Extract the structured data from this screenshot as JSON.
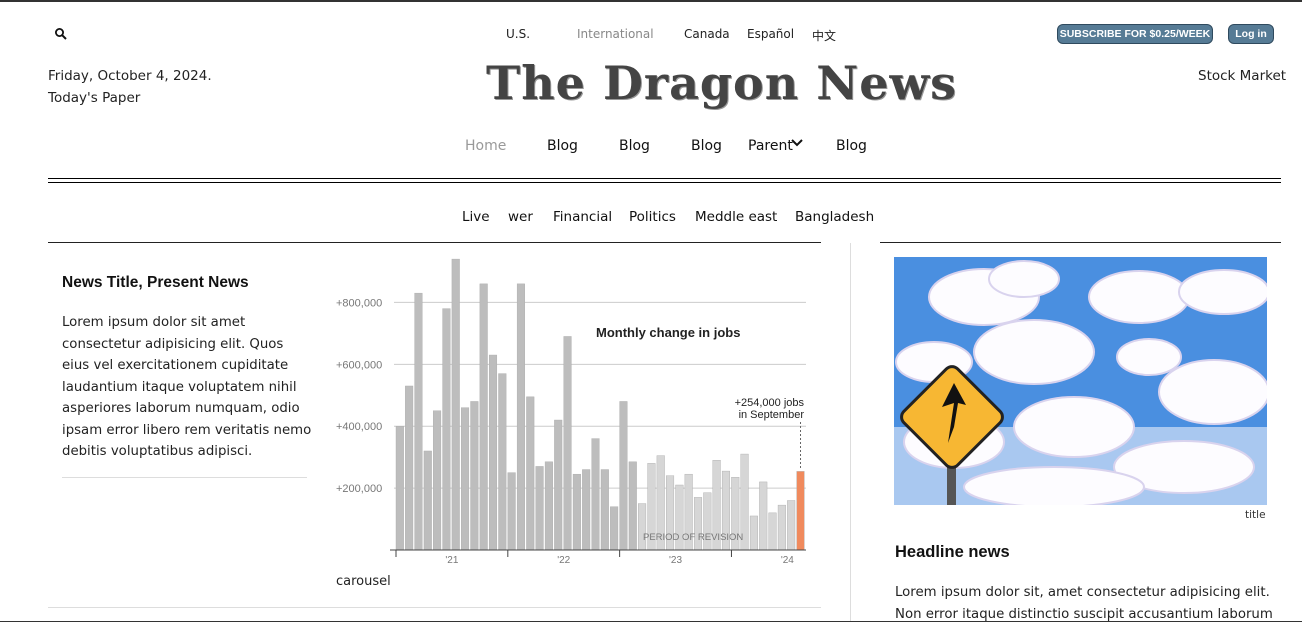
{
  "top_nav": [
    "U.S.",
    "International",
    "Canada",
    "Español",
    "中文"
  ],
  "subscribe_label": "SUBSCRIBE FOR $0.25/WEEK",
  "login_label": "Log in",
  "date": "Friday, October 4, 2024.",
  "todays_paper": "Today's Paper",
  "logo": "The Dragon News",
  "stock_market": "Stock Market",
  "main_nav": [
    "Home",
    "Blog",
    "Blog",
    "Blog",
    "Parent",
    "Blog"
  ],
  "section_nav": [
    "Live",
    "wer",
    "Financial",
    "Politics",
    "Meddle east",
    "Bangladesh"
  ],
  "card": {
    "title": "News Title, Present News",
    "body": "Lorem ipsum dolor sit amet consectetur adipisicing elit. Quos eius vel exercitationem cupiditate laudantium itaque voluptatem nihil asperiores laborum numquam, odio ipsam error libero rem veritatis nemo debitis voluptatibus adipisci."
  },
  "carousel_label": "carousel",
  "photo_caption": "title",
  "headline": "Headline news",
  "headline_body": "Lorem ipsum dolor sit, amet consectetur adipisicing elit. Non error itaque distinctio suscipit accusantium laborum",
  "colors": {
    "button": "#567b95",
    "highlight_bar": "#f08a5d",
    "bar": "#bdbdbd",
    "revision_bar": "#d6d6d6"
  },
  "chart_data": {
    "type": "bar",
    "title": "Monthly change in jobs",
    "y_ticks": [
      "+800,000",
      "+600,000",
      "+400,000",
      "+200,000"
    ],
    "y_tick_values": [
      800000,
      600000,
      400000,
      200000
    ],
    "x_ticks": [
      "'21",
      "'22",
      "'23",
      "'24"
    ],
    "ylim": [
      0,
      950000
    ],
    "annotation": "+254,000 jobs in September",
    "revision_label": "PERIOD OF REVISION",
    "values": [
      400000,
      530000,
      830000,
      320000,
      450000,
      780000,
      940000,
      460000,
      480000,
      860000,
      630000,
      570000,
      250000,
      860000,
      495000,
      270000,
      285000,
      420000,
      690000,
      245000,
      260000,
      360000,
      260000,
      140000,
      480000,
      285000,
      150000,
      280000,
      305000,
      240000,
      210000,
      245000,
      170000,
      185000,
      290000,
      255000,
      235000,
      310000,
      110000,
      220000,
      120000,
      145000,
      160000,
      254000
    ],
    "revision_start_index": 26,
    "highlight_index": 43
  }
}
